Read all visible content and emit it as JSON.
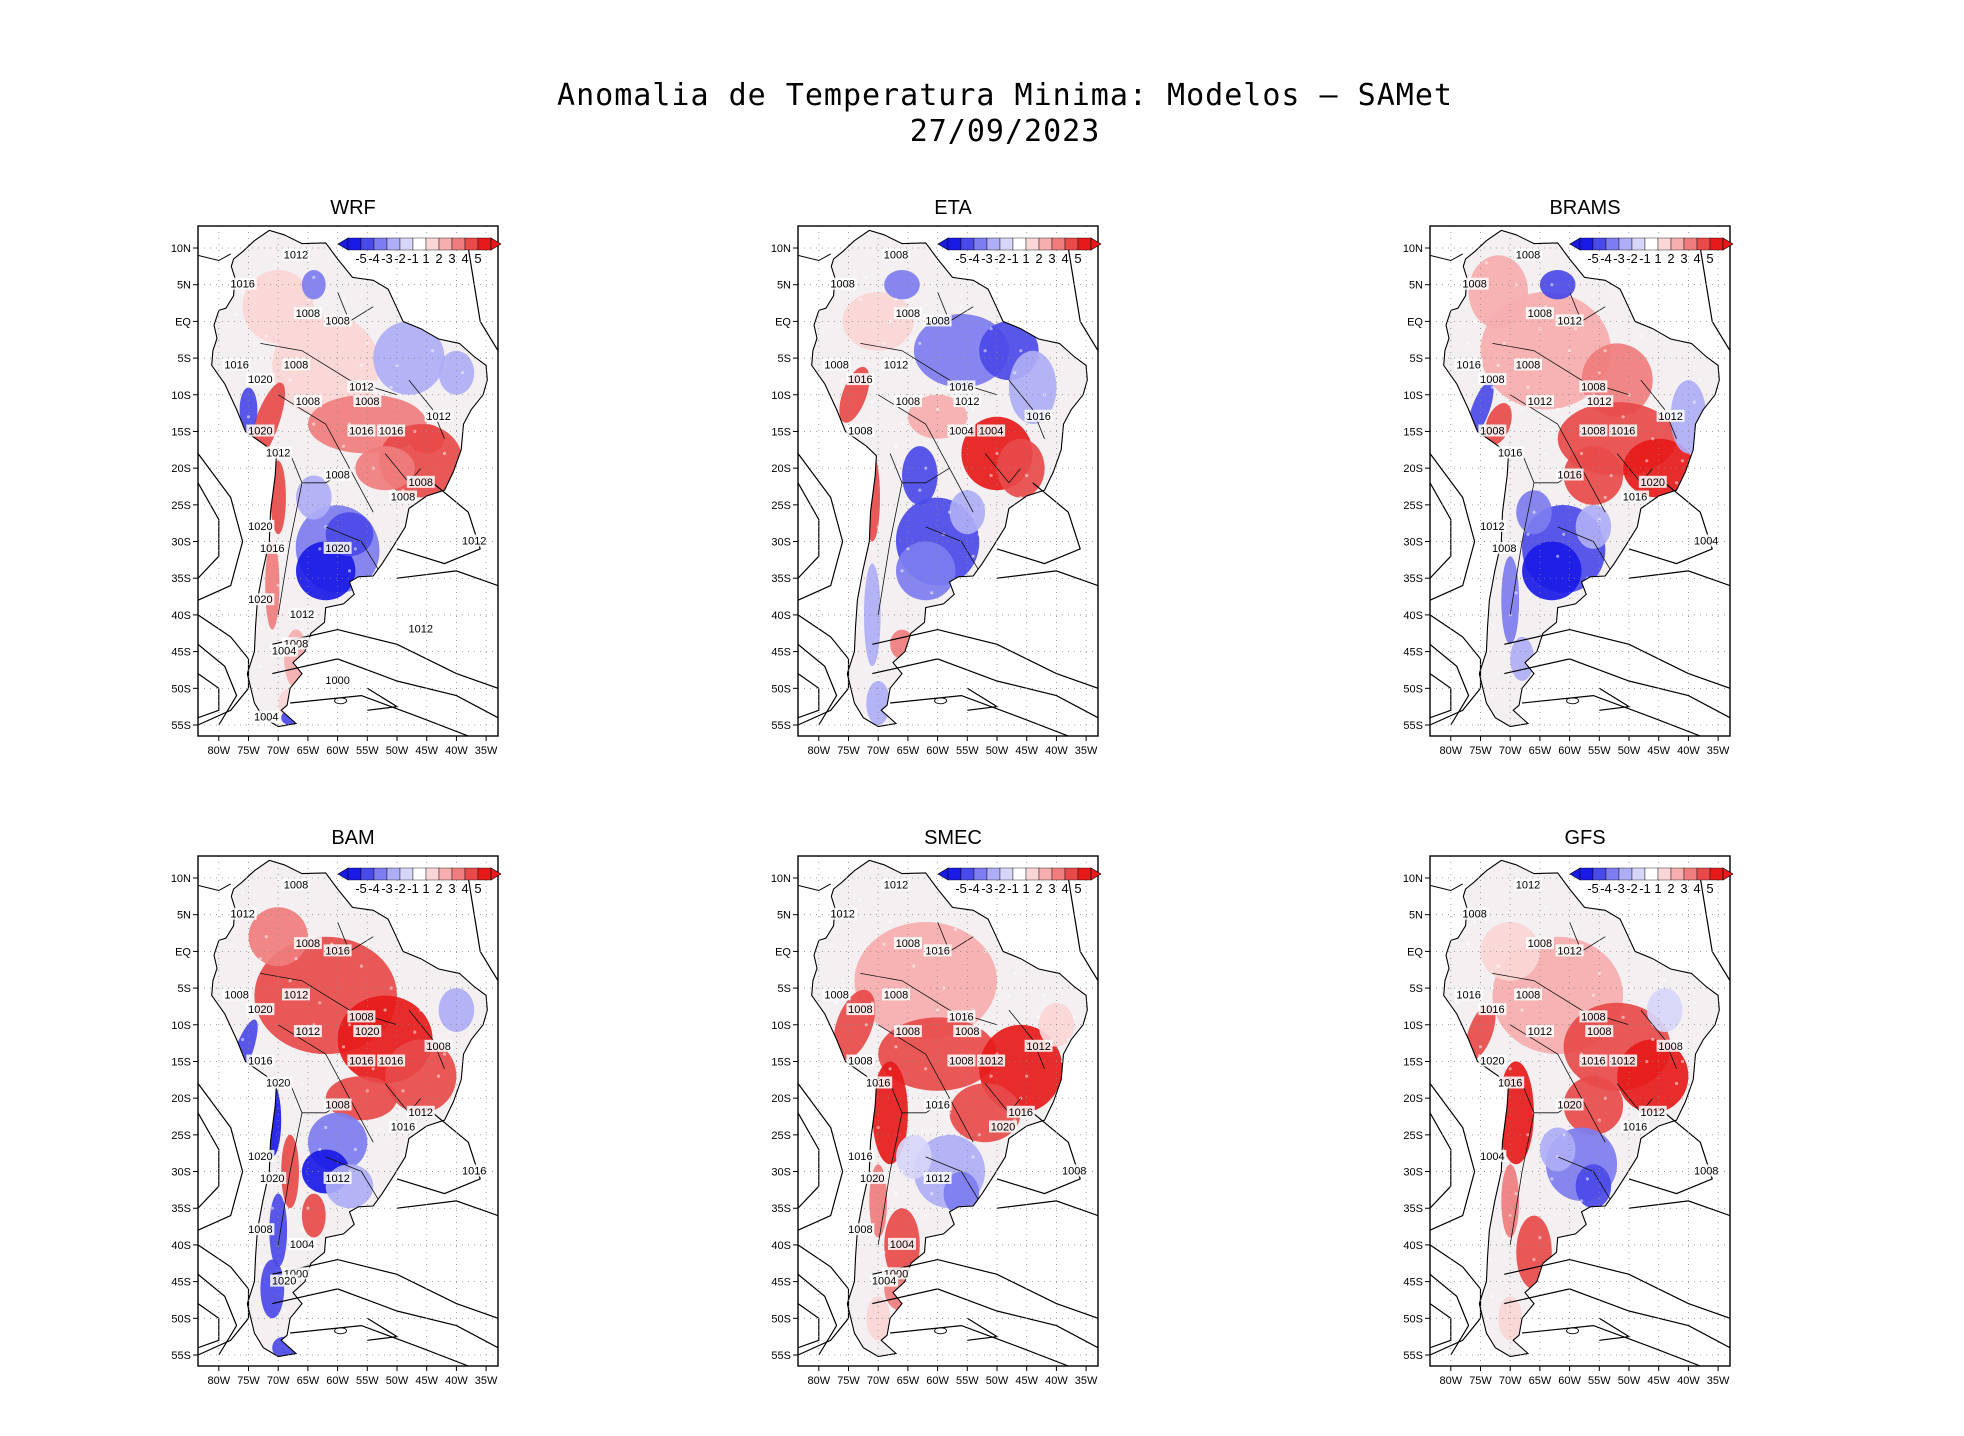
{
  "title": {
    "line1": "Anomalia de Temperatura Minima: Modelos – SAMet",
    "line2": "27/09/2023"
  },
  "colors": {
    "neg5": "#1a1ae6",
    "neg4": "#4a4ae8",
    "neg3": "#7d7df0",
    "neg2": "#aeaef6",
    "neg1": "#d6d6fa",
    "zero": "#ffffff",
    "pos1": "#fad6d6",
    "pos2": "#f6aeae",
    "pos3": "#f07d7d",
    "pos4": "#e84a4a",
    "pos5": "#e61a1a",
    "land": "#f4f0f2"
  },
  "colorbar": {
    "labels": [
      "-5",
      "-4",
      "-3",
      "-2",
      "-1",
      "1",
      "2",
      "3",
      "4",
      "5"
    ]
  },
  "axes": {
    "lat_labels": [
      "10N",
      "5N",
      "EQ",
      "5S",
      "10S",
      "15S",
      "20S",
      "25S",
      "30S",
      "35S",
      "40S",
      "45S",
      "50S",
      "55S"
    ],
    "lon_labels": [
      "80W",
      "75W",
      "70W",
      "65W",
      "60W",
      "55W",
      "50W",
      "45W",
      "40W",
      "35W"
    ]
  },
  "panels": [
    {
      "name": "WRF",
      "pattern": "wrf",
      "contours": [
        "1012",
        "1016",
        "1008",
        "1008",
        "1016",
        "1008",
        "1012",
        "1020",
        "1008",
        "1012",
        "1008",
        "1020",
        "1016",
        "1016",
        "1012",
        "1008",
        "1008",
        "1008",
        "1012",
        "1020",
        "1016",
        "1020",
        "1020",
        "1012",
        "1008",
        "1004",
        "1000",
        "1004",
        "1012"
      ]
    },
    {
      "name": "ETA",
      "pattern": "eta",
      "contours": [
        "1008",
        "1008",
        "1008",
        "1008",
        "1008",
        "1012",
        "1016",
        "1016",
        "1008",
        "1016",
        "1012",
        "1008",
        "1004",
        "1004"
      ]
    },
    {
      "name": "BRAMS",
      "pattern": "brams",
      "contours": [
        "1008",
        "1008",
        "1008",
        "1012",
        "1016",
        "1008",
        "1008",
        "1008",
        "1012",
        "1012",
        "1012",
        "1008",
        "1008",
        "1016",
        "1016",
        "1016",
        "1020",
        "1016",
        "1004",
        "1012",
        "1008"
      ]
    },
    {
      "name": "BAM",
      "pattern": "bam",
      "contours": [
        "1008",
        "1012",
        "1008",
        "1016",
        "1008",
        "1012",
        "1008",
        "1020",
        "1012",
        "1008",
        "1020",
        "1016",
        "1016",
        "1016",
        "1020",
        "1008",
        "1012",
        "1016",
        "1016",
        "1020",
        "1020",
        "1012",
        "1008",
        "1004",
        "1000",
        "1020"
      ]
    },
    {
      "name": "SMEC",
      "pattern": "smec",
      "contours": [
        "1012",
        "1012",
        "1008",
        "1016",
        "1008",
        "1008",
        "1016",
        "1008",
        "1008",
        "1012",
        "1008",
        "1008",
        "1008",
        "1012",
        "1016",
        "1016",
        "1016",
        "1020",
        "1008",
        "1016",
        "1020",
        "1012",
        "1008",
        "1004",
        "1000",
        "1004"
      ]
    },
    {
      "name": "GFS",
      "pattern": "gfs",
      "contours": [
        "1012",
        "1008",
        "1008",
        "1012",
        "1016",
        "1008",
        "1008",
        "1016",
        "1012",
        "1008",
        "1008",
        "1020",
        "1016",
        "1012",
        "1016",
        "1020",
        "1012",
        "1016",
        "1008",
        "1004"
      ]
    }
  ]
}
